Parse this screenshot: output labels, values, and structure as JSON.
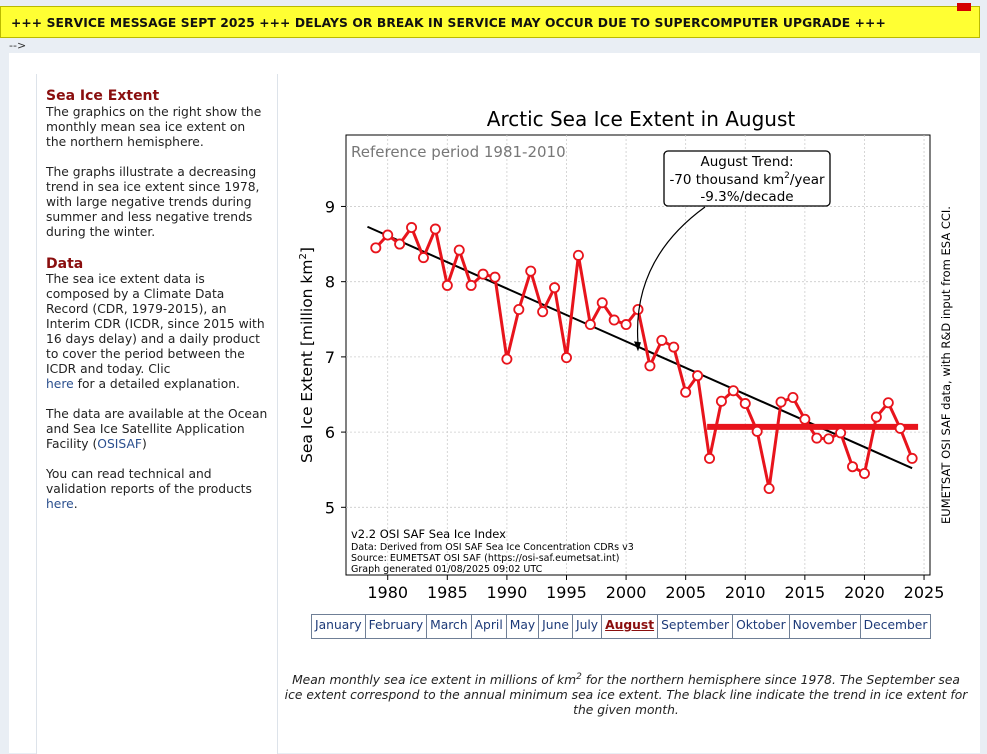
{
  "banner": {
    "text": "+++ SERVICE MESSAGE SEPT 2025 +++ DELAYS OR BREAK IN SERVICE MAY OCCUR DUE TO SUPERCOMPUTER UPGRADE +++",
    "bg_color": "#ffff33"
  },
  "stray_text": "-->",
  "sidebar": {
    "heading1": "Sea Ice Extent",
    "p1": "The graphics on the right show the monthly mean sea ice extent on the northern hemisphere.",
    "p2": "The graphs illustrate a decreasing trend in sea ice extent since 1978, with large negative trends during summer and less negative trends during the winter.",
    "heading2": "Data",
    "p3_text": "The sea ice extent data is composed by a Climate Data Record (CDR, 1979-2015), an Interim CDR (ICDR, since 2015 with 16 days delay) and a daily product to cover the period between the ICDR and today. Clic",
    "p3_link": "here",
    "p3_tail": "for a detailed explanation.",
    "p4_text": "The data are available at the Ocean and Sea Ice Satellite Application Facility (",
    "p4_link": "OSISAF",
    "p4_tail": ")",
    "p5_text": "You can read technical and validation reports of the products",
    "p5_link": "here",
    "p5_tail": "."
  },
  "months": {
    "items": [
      "January",
      "February",
      "March",
      "April",
      "May",
      "June",
      "July",
      "August",
      "September",
      "Oktober",
      "November",
      "December"
    ],
    "active": "August"
  },
  "caption": {
    "pre": "Mean monthly sea ice extent in millions of km",
    "sup": "2",
    "post": " for the northern hemisphere since 1978. The September sea ice extent correspond to the annual minimum sea ice extent. The black line indicate the trend in ice extent for the given month."
  },
  "colors": {
    "series": "#e8141c",
    "trend": "#000000",
    "heading": "#8a0e0e",
    "link": "#1d3a78"
  },
  "chart_data": {
    "type": "line",
    "title": "Arctic Sea Ice Extent in August",
    "ylabel_main": "Sea Ice Extent [million km",
    "ylabel_sup": "2",
    "ylabel_end": "]",
    "xlim": [
      1976.5,
      2025.5
    ],
    "ylim": [
      4.1,
      9.95
    ],
    "xticks": [
      1980,
      1985,
      1990,
      1995,
      2000,
      2005,
      2010,
      2015,
      2020,
      2025
    ],
    "yticks": [
      5,
      6,
      7,
      8,
      9
    ],
    "grid": true,
    "reference_text": "Reference period 1981-2010",
    "trend_box": {
      "line1": "August Trend:",
      "line2_pre": "-70 thousand km",
      "line2_sup": "2",
      "line2_post": "/year",
      "line3": "-9.3%/decade",
      "arrow_target": [
        2001,
        7.1
      ]
    },
    "footer": [
      "v2.2 OSI SAF Sea Ice Index",
      "Data: Derived from OSI SAF Sea Ice Concentration CDRs v3",
      "Source: EUMETSAT OSI SAF (https://osi-saf.eumetsat.int)",
      "Graph generated 01/08/2025 09:02 UTC"
    ],
    "side_text": "EUMETSAT OSI SAF data, with R&D input from ESA CCI.",
    "series": [
      {
        "name": "August mean extent",
        "x": [
          1979,
          1980,
          1981,
          1982,
          1983,
          1984,
          1985,
          1986,
          1987,
          1988,
          1989,
          1990,
          1991,
          1992,
          1993,
          1994,
          1995,
          1996,
          1997,
          1998,
          1999,
          2000,
          2001,
          2002,
          2003,
          2004,
          2005,
          2006,
          2007,
          2008,
          2009,
          2010,
          2011,
          2012,
          2013,
          2014,
          2015,
          2016,
          2017,
          2018,
          2019,
          2020,
          2021,
          2022,
          2023,
          2024
        ],
        "values": [
          8.45,
          8.62,
          8.5,
          8.72,
          8.32,
          8.7,
          7.95,
          8.42,
          7.95,
          8.1,
          8.06,
          6.97,
          7.63,
          8.14,
          7.6,
          7.92,
          6.99,
          8.35,
          7.43,
          7.72,
          7.49,
          7.43,
          7.63,
          6.88,
          7.22,
          7.13,
          6.53,
          6.75,
          5.65,
          6.41,
          6.55,
          6.38,
          6.01,
          5.25,
          6.4,
          6.46,
          6.17,
          5.92,
          5.91,
          5.99,
          5.54,
          5.45,
          6.2,
          6.39,
          6.05,
          5.65
        ]
      }
    ],
    "trend_line": {
      "x": [
        1978.3,
        2024
      ],
      "values": [
        8.73,
        5.52
      ]
    },
    "mean_line": {
      "x": [
        2006.8,
        2024.5
      ],
      "value": 6.07
    }
  }
}
